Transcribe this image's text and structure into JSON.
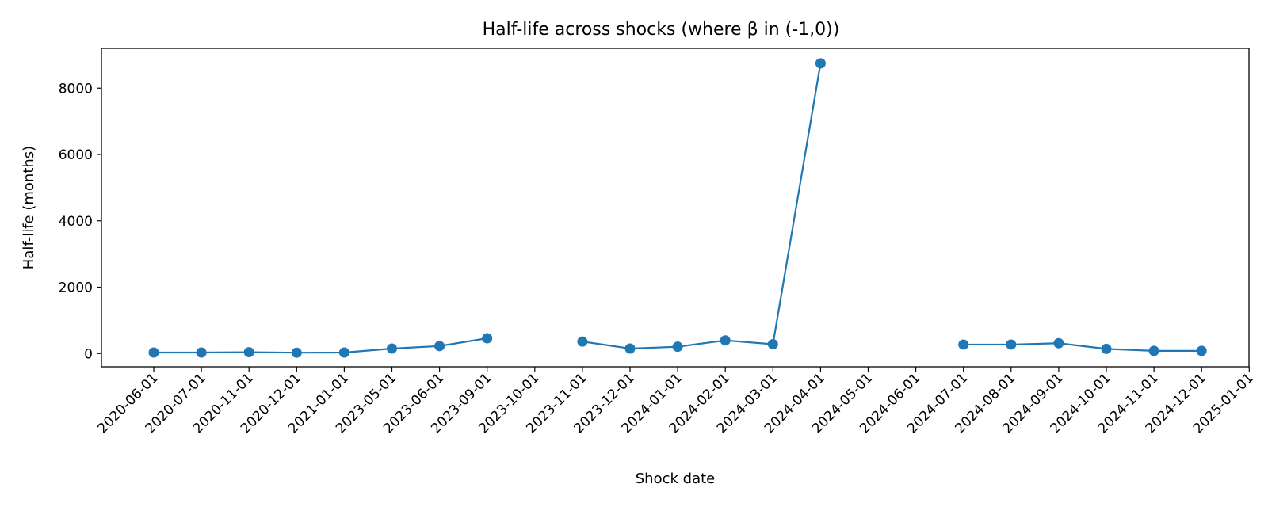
{
  "chart_data": {
    "type": "line",
    "title": "Half-life across shocks (where β in (-1,0))",
    "xlabel": "Shock date",
    "ylabel": "Half-life (months)",
    "ylim": [
      -400,
      9200
    ],
    "yticks": [
      0,
      2000,
      4000,
      6000,
      8000
    ],
    "grid": false,
    "legend": "none",
    "categories": [
      "2020-06-01",
      "2020-07-01",
      "2020-11-01",
      "2020-12-01",
      "2021-01-01",
      "2023-05-01",
      "2023-06-01",
      "2023-09-01",
      "2023-10-01",
      "2023-11-01",
      "2023-12-01",
      "2024-01-01",
      "2024-02-01",
      "2024-03-01",
      "2024-04-01",
      "2024-05-01",
      "2024-06-01",
      "2024-07-01",
      "2024-08-01",
      "2024-09-01",
      "2024-10-01",
      "2024-11-01",
      "2024-12-01",
      "2025-01-01"
    ],
    "series": [
      {
        "color": "#1f77b4",
        "values": [
          30,
          30,
          40,
          25,
          30,
          150,
          225,
          460,
          null,
          360,
          150,
          205,
          395,
          280,
          8750,
          null,
          null,
          270,
          270,
          310,
          140,
          80,
          80,
          null
        ]
      }
    ]
  }
}
